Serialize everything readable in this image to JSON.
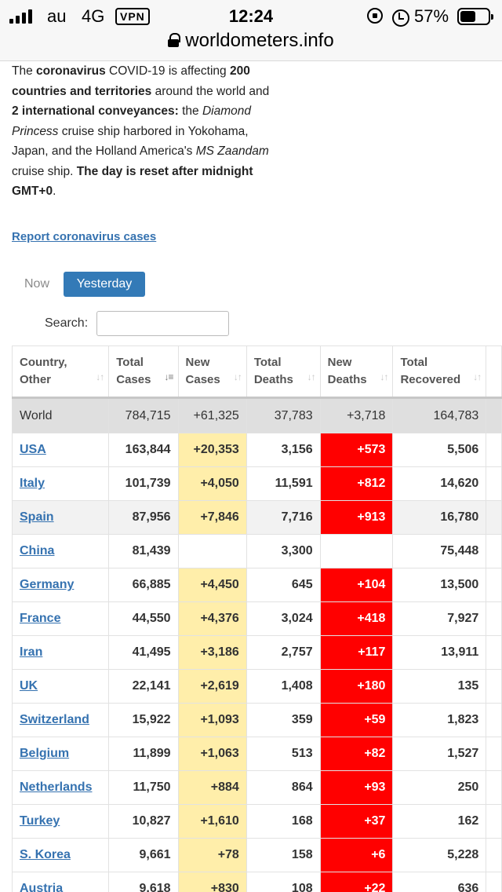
{
  "status_bar": {
    "carrier": "au",
    "network": "4G",
    "vpn": "VPN",
    "time": "12:24",
    "battery_percent": "57%",
    "battery_level": 0.57
  },
  "url_bar": {
    "domain": "worldometers.info"
  },
  "intro": {
    "p1": "The ",
    "p2": "coronavirus",
    "p3": " COVID-19 is affecting ",
    "p4": "200 countries and territories",
    "p5": " around the world and ",
    "p6": "2 international conveyances:",
    "p7": " the ",
    "p8": "Diamond Princess",
    "p9": " cruise ship harbored in Yokohama, Japan, and the Holland America's ",
    "p10": "MS Zaandam",
    "p11": " cruise ship. ",
    "p12": "The day is reset after midnight GMT+0",
    "p13": "."
  },
  "report_link": "Report coronavirus cases",
  "tabs": {
    "now": "Now",
    "yesterday": "Yesterday"
  },
  "search": {
    "label": "Search:",
    "value": ""
  },
  "table": {
    "headers": [
      {
        "l1": "Country,",
        "l2": "Other"
      },
      {
        "l1": "Total",
        "l2": "Cases"
      },
      {
        "l1": "New",
        "l2": "Cases"
      },
      {
        "l1": "Total",
        "l2": "Deaths"
      },
      {
        "l1": "New",
        "l2": "Deaths"
      },
      {
        "l1": "Total",
        "l2": "Recovered"
      }
    ],
    "world": {
      "country": "World",
      "total_cases": "784,715",
      "new_cases": "+61,325",
      "total_deaths": "37,783",
      "new_deaths": "+3,718",
      "total_recovered": "164,783"
    },
    "rows": [
      {
        "country": "USA",
        "total_cases": "163,844",
        "new_cases": "+20,353",
        "total_deaths": "3,156",
        "new_deaths": "+573",
        "total_recovered": "5,506"
      },
      {
        "country": "Italy",
        "total_cases": "101,739",
        "new_cases": "+4,050",
        "total_deaths": "11,591",
        "new_deaths": "+812",
        "total_recovered": "14,620"
      },
      {
        "country": "Spain",
        "total_cases": "87,956",
        "new_cases": "+7,846",
        "total_deaths": "7,716",
        "new_deaths": "+913",
        "total_recovered": "16,780"
      },
      {
        "country": "China",
        "total_cases": "81,439",
        "new_cases": "",
        "total_deaths": "3,300",
        "new_deaths": "",
        "total_recovered": "75,448"
      },
      {
        "country": "Germany",
        "total_cases": "66,885",
        "new_cases": "+4,450",
        "total_deaths": "645",
        "new_deaths": "+104",
        "total_recovered": "13,500"
      },
      {
        "country": "France",
        "total_cases": "44,550",
        "new_cases": "+4,376",
        "total_deaths": "3,024",
        "new_deaths": "+418",
        "total_recovered": "7,927"
      },
      {
        "country": "Iran",
        "total_cases": "41,495",
        "new_cases": "+3,186",
        "total_deaths": "2,757",
        "new_deaths": "+117",
        "total_recovered": "13,911"
      },
      {
        "country": "UK",
        "total_cases": "22,141",
        "new_cases": "+2,619",
        "total_deaths": "1,408",
        "new_deaths": "+180",
        "total_recovered": "135"
      },
      {
        "country": "Switzerland",
        "total_cases": "15,922",
        "new_cases": "+1,093",
        "total_deaths": "359",
        "new_deaths": "+59",
        "total_recovered": "1,823"
      },
      {
        "country": "Belgium",
        "total_cases": "11,899",
        "new_cases": "+1,063",
        "total_deaths": "513",
        "new_deaths": "+82",
        "total_recovered": "1,527"
      },
      {
        "country": "Netherlands",
        "total_cases": "11,750",
        "new_cases": "+884",
        "total_deaths": "864",
        "new_deaths": "+93",
        "total_recovered": "250"
      },
      {
        "country": "Turkey",
        "total_cases": "10,827",
        "new_cases": "+1,610",
        "total_deaths": "168",
        "new_deaths": "+37",
        "total_recovered": "162"
      },
      {
        "country": "S. Korea",
        "total_cases": "9,661",
        "new_cases": "+78",
        "total_deaths": "158",
        "new_deaths": "+6",
        "total_recovered": "5,228"
      },
      {
        "country": "Austria",
        "total_cases": "9,618",
        "new_cases": "+830",
        "total_deaths": "108",
        "new_deaths": "+22",
        "total_recovered": "636"
      }
    ]
  },
  "colors": {
    "link": "#3572b0",
    "tab_active": "#337ab7",
    "new_cases_bg": "#ffeeaa",
    "new_deaths_bg": "#ff0000",
    "world_row_bg": "#dfdfdf"
  }
}
